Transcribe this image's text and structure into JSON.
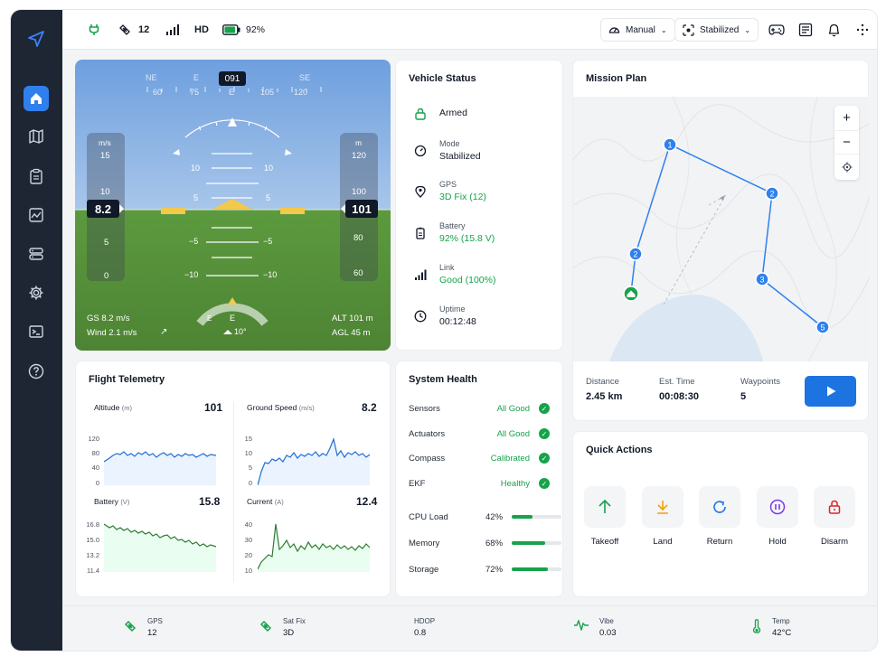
{
  "topbar": {
    "sat_count": "12",
    "video": "HD",
    "battery_pct": "92%",
    "battery_level": 0.92,
    "mode_dropdown": "Manual",
    "stab_dropdown": "Stabilized"
  },
  "hud": {
    "heading": "091",
    "compass_top": [
      "NE",
      "E",
      "SE"
    ],
    "compass_nums": [
      "60",
      "75",
      "105",
      "120"
    ],
    "speed_unit": "m/s",
    "speed_ticks": [
      "15",
      "10",
      "5",
      "0"
    ],
    "speed_value": "8.2",
    "alt_unit": "m",
    "alt_ticks": [
      "120",
      "100",
      "80",
      "60"
    ],
    "alt_value": "101",
    "pitch_labels": [
      "10",
      "5",
      "−5",
      "−10"
    ],
    "gs": "GS 8.2 m/s",
    "wind": "Wind 2.1 m/s",
    "alt": "ALT 101 m",
    "agl": "AGL 45 m",
    "bottom_compass": "E",
    "bottom_ticks": "E",
    "wind_heading": "10°"
  },
  "vehicle_status": {
    "title": "Vehicle Status",
    "armed": "Armed",
    "mode_label": "Mode",
    "mode_value": "Stabilized",
    "gps_label": "GPS",
    "gps_value": "3D Fix (12)",
    "battery_label": "Battery",
    "battery_value": "92% (15.8 V)",
    "link_label": "Link",
    "link_value": "Good (100%)",
    "uptime_label": "Uptime",
    "uptime_value": "00:12:48"
  },
  "mission": {
    "title": "Mission Plan",
    "waypoints": [
      "1",
      "2",
      "3",
      "5",
      "2"
    ],
    "distance_label": "Distance",
    "distance_value": "2.45 km",
    "time_label": "Est. Time",
    "time_value": "00:08:30",
    "wp_label": "Waypoints",
    "wp_value": "5",
    "zoom_in": "+",
    "zoom_out": "−"
  },
  "telemetry": {
    "title": "Flight Telemetry",
    "altitude": {
      "label": "Altitude",
      "unit": "(m)",
      "value": "101",
      "ticks": [
        "120",
        "80",
        "40",
        "0"
      ]
    },
    "ground_speed": {
      "label": "Ground Speed",
      "unit": "(m/s)",
      "value": "8.2",
      "ticks": [
        "15",
        "10",
        "5",
        "0"
      ]
    },
    "battery": {
      "label": "Battery",
      "unit": "(V)",
      "value": "15.8",
      "ticks": [
        "16.8",
        "15.0",
        "13.2",
        "11.4"
      ]
    },
    "current": {
      "label": "Current",
      "unit": "(A)",
      "value": "12.4",
      "ticks": [
        "40",
        "30",
        "20",
        "10"
      ]
    }
  },
  "system_health": {
    "title": "System Health",
    "checks": [
      {
        "name": "Sensors",
        "status": "All Good"
      },
      {
        "name": "Actuators",
        "status": "All Good"
      },
      {
        "name": "Compass",
        "status": "Calibrated"
      },
      {
        "name": "EKF",
        "status": "Healthy"
      }
    ],
    "loads": [
      {
        "name": "CPU Load",
        "value": "42%",
        "fraction": 0.42
      },
      {
        "name": "Memory",
        "value": "68%",
        "fraction": 0.68
      },
      {
        "name": "Storage",
        "value": "72%",
        "fraction": 0.72
      }
    ]
  },
  "quick_actions": {
    "title": "Quick Actions",
    "takeoff": "Takeoff",
    "land": "Land",
    "return": "Return",
    "hold": "Hold",
    "disarm": "Disarm"
  },
  "footer": {
    "gps_label": "GPS",
    "gps_value": "12",
    "satfix_label": "Sat Fix",
    "satfix_value": "3D",
    "hdop_label": "HDOP",
    "hdop_value": "0.8",
    "vibe_label": "Vibe",
    "vibe_value": "0.03",
    "temp_label": "Temp",
    "temp_value": "42°C"
  },
  "colors": {
    "accent": "#2f80ed",
    "ok": "#16a34a",
    "sidebar": "#1e2533",
    "sky": "#6fa1de",
    "ground": "#5f9a42"
  }
}
